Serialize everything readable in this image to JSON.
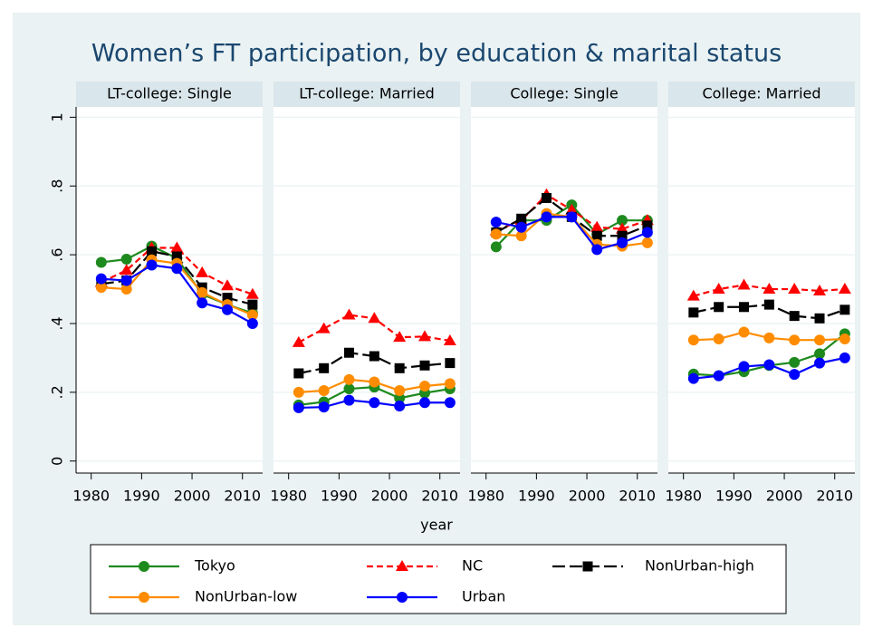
{
  "chart_data": {
    "type": "line",
    "title": "Women’s FT participation, by education & marital status",
    "xlabel": "year",
    "x": [
      1982,
      1987,
      1992,
      1997,
      2002,
      2007,
      2012
    ],
    "xlim": [
      1977,
      2014
    ],
    "xticks": [
      1980,
      1990,
      2000,
      2010
    ],
    "ylim": [
      -0.035,
      1.03
    ],
    "yticks": [
      0,
      {
        "value": 0.2,
        "label": ".2"
      },
      {
        "value": 0.4,
        "label": ".4"
      },
      {
        "value": 0.6,
        "label": ".6"
      },
      {
        "value": 0.8,
        "label": ".8"
      },
      1
    ],
    "grid": true,
    "series": [
      {
        "name": "Tokyo",
        "color": "#1e8a1e",
        "marker": "circle",
        "dash": "solid"
      },
      {
        "name": "NC",
        "color": "#ff0000",
        "marker": "triangle",
        "dash": "short"
      },
      {
        "name": "NonUrban-high",
        "color": "#000000",
        "marker": "square",
        "dash": "long"
      },
      {
        "name": "NonUrban-low",
        "color": "#ff8c00",
        "marker": "circle",
        "dash": "solid"
      },
      {
        "name": "Urban",
        "color": "#0000ff",
        "marker": "circle",
        "dash": "solid"
      }
    ],
    "panels": [
      {
        "title": "LT-college: Single",
        "values": [
          [
            0.578,
            0.587,
            0.625,
            0.59,
            0.485,
            0.455,
            0.43
          ],
          [
            0.52,
            0.555,
            0.62,
            0.62,
            0.548,
            0.51,
            0.485
          ],
          [
            0.515,
            0.525,
            0.61,
            0.595,
            0.505,
            0.475,
            0.455
          ],
          [
            0.505,
            0.5,
            0.585,
            0.575,
            0.49,
            0.455,
            0.425
          ],
          [
            0.53,
            0.525,
            0.57,
            0.56,
            0.46,
            0.44,
            0.4
          ]
        ]
      },
      {
        "title": "LT-college: Married",
        "values": [
          [
            0.163,
            0.172,
            0.21,
            0.215,
            0.183,
            0.198,
            0.21
          ],
          [
            0.345,
            0.385,
            0.425,
            0.415,
            0.36,
            0.362,
            0.35
          ],
          [
            0.255,
            0.27,
            0.315,
            0.305,
            0.27,
            0.278,
            0.285
          ],
          [
            0.2,
            0.205,
            0.237,
            0.23,
            0.205,
            0.218,
            0.225
          ],
          [
            0.155,
            0.157,
            0.177,
            0.17,
            0.16,
            0.17,
            0.17
          ]
        ]
      },
      {
        "title": "College: Single",
        "values": [
          [
            0.623,
            0.7,
            0.7,
            0.745,
            0.66,
            0.7,
            0.7
          ],
          [
            0.67,
            0.7,
            0.775,
            0.73,
            0.68,
            0.675,
            0.7
          ],
          [
            0.665,
            0.705,
            0.765,
            0.71,
            0.655,
            0.655,
            0.685
          ],
          [
            0.66,
            0.655,
            0.72,
            0.71,
            0.63,
            0.625,
            0.635
          ],
          [
            0.695,
            0.68,
            0.71,
            0.71,
            0.615,
            0.635,
            0.665
          ]
        ]
      },
      {
        "title": "College: Married",
        "values": [
          [
            0.253,
            0.248,
            0.26,
            0.278,
            0.287,
            0.312,
            0.37
          ],
          [
            0.48,
            0.5,
            0.512,
            0.5,
            0.5,
            0.495,
            0.5
          ],
          [
            0.432,
            0.448,
            0.448,
            0.455,
            0.422,
            0.415,
            0.44
          ],
          [
            0.352,
            0.355,
            0.375,
            0.358,
            0.352,
            0.352,
            0.355
          ],
          [
            0.24,
            0.248,
            0.275,
            0.28,
            0.252,
            0.285,
            0.3
          ]
        ]
      }
    ]
  }
}
